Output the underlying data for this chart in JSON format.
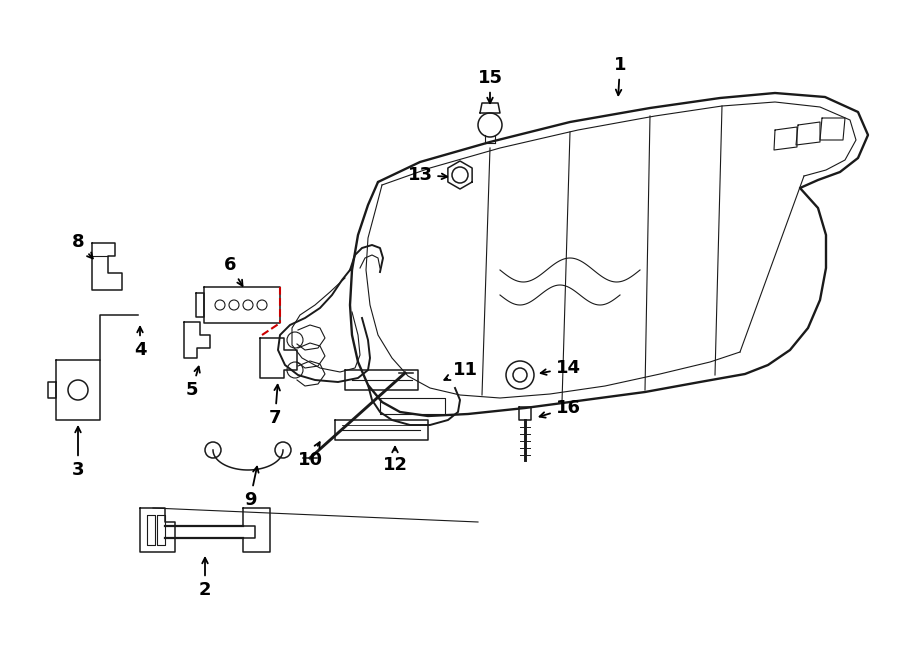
{
  "bg_color": "#ffffff",
  "line_color": "#1a1a1a",
  "red_color": "#cc0000",
  "lw_frame": 1.4,
  "lw_part": 1.1,
  "lw_thin": 0.8,
  "label_fontsize": 13,
  "figsize": [
    9.0,
    6.61
  ],
  "dpi": 100
}
